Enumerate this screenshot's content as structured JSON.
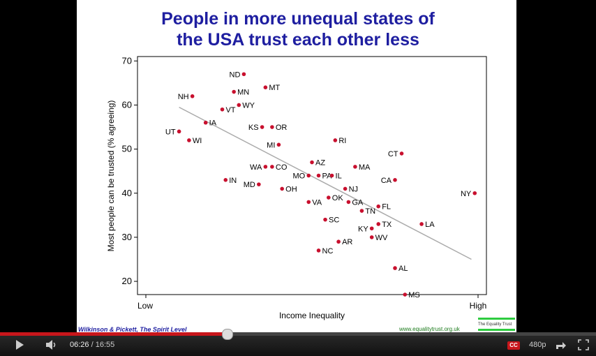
{
  "slide": {
    "title_line1": "People in more unequal states of",
    "title_line2": "the USA trust each other less",
    "footer_left": "Wilkinson & Pickett, The Spirit Level",
    "footer_right": "www.equalitytrust.org.uk",
    "logo_text": "The Equality Trust"
  },
  "chart_data": {
    "type": "scatter",
    "xlabel": "Income Inequality",
    "ylabel": "Most people can be trusted (% agreeing)",
    "x_tick_labels": [
      "Low",
      "High"
    ],
    "ylim": [
      17,
      71
    ],
    "yticks": [
      20,
      30,
      40,
      50,
      60,
      70
    ],
    "xlim": [
      0,
      100
    ],
    "colors": {
      "point": "#c8102e",
      "trend": "#aaaaaa"
    },
    "trend": [
      {
        "x": 10,
        "y": 59.5
      },
      {
        "x": 98,
        "y": 25
      }
    ],
    "points": [
      {
        "label": "ND",
        "x": 29.5,
        "y": 67
      },
      {
        "label": "MN",
        "x": 26.5,
        "y": 63
      },
      {
        "label": "MT",
        "x": 36,
        "y": 64
      },
      {
        "label": "NH",
        "x": 14,
        "y": 62
      },
      {
        "label": "WY",
        "x": 28,
        "y": 60
      },
      {
        "label": "VT",
        "x": 23,
        "y": 59
      },
      {
        "label": "IA",
        "x": 18,
        "y": 56
      },
      {
        "label": "UT",
        "x": 10,
        "y": 54
      },
      {
        "label": "KS",
        "x": 35,
        "y": 55
      },
      {
        "label": "OR",
        "x": 38,
        "y": 55
      },
      {
        "label": "WI",
        "x": 13,
        "y": 52
      },
      {
        "label": "RI",
        "x": 57,
        "y": 52
      },
      {
        "label": "MI",
        "x": 40,
        "y": 51
      },
      {
        "label": "CT",
        "x": 77,
        "y": 49
      },
      {
        "label": "WA",
        "x": 36,
        "y": 46
      },
      {
        "label": "CO",
        "x": 38,
        "y": 46
      },
      {
        "label": "AZ",
        "x": 50,
        "y": 47
      },
      {
        "label": "PA",
        "x": 52,
        "y": 44
      },
      {
        "label": "MA",
        "x": 63,
        "y": 46
      },
      {
        "label": "MO",
        "x": 49,
        "y": 44
      },
      {
        "label": "IL",
        "x": 56,
        "y": 44
      },
      {
        "label": "CA",
        "x": 75,
        "y": 43
      },
      {
        "label": "IN",
        "x": 24,
        "y": 43
      },
      {
        "label": "MD",
        "x": 34,
        "y": 42
      },
      {
        "label": "OH",
        "x": 41,
        "y": 41
      },
      {
        "label": "NJ",
        "x": 60,
        "y": 41
      },
      {
        "label": "NY",
        "x": 99,
        "y": 40
      },
      {
        "label": "OK",
        "x": 55,
        "y": 39
      },
      {
        "label": "VA",
        "x": 49,
        "y": 38
      },
      {
        "label": "GA",
        "x": 61,
        "y": 38
      },
      {
        "label": "FL",
        "x": 70,
        "y": 37
      },
      {
        "label": "TN",
        "x": 65,
        "y": 36
      },
      {
        "label": "SC",
        "x": 54,
        "y": 34
      },
      {
        "label": "LA",
        "x": 83,
        "y": 33
      },
      {
        "label": "TX",
        "x": 70,
        "y": 33
      },
      {
        "label": "KY",
        "x": 68,
        "y": 32
      },
      {
        "label": "WV",
        "x": 68,
        "y": 30
      },
      {
        "label": "AR",
        "x": 58,
        "y": 29
      },
      {
        "label": "NC",
        "x": 52,
        "y": 27
      },
      {
        "label": "AL",
        "x": 75,
        "y": 23
      },
      {
        "label": "MS",
        "x": 78,
        "y": 17
      }
    ]
  },
  "player": {
    "current_time": "06:26",
    "separator": "/",
    "duration": "16:55",
    "quality": "480p",
    "cc_label": "CC",
    "progress": 0.38,
    "icons": {
      "play": "play-icon",
      "volume": "volume-icon",
      "captions": "captions-icon",
      "share": "share-icon",
      "fullscreen": "fullscreen-icon"
    }
  }
}
